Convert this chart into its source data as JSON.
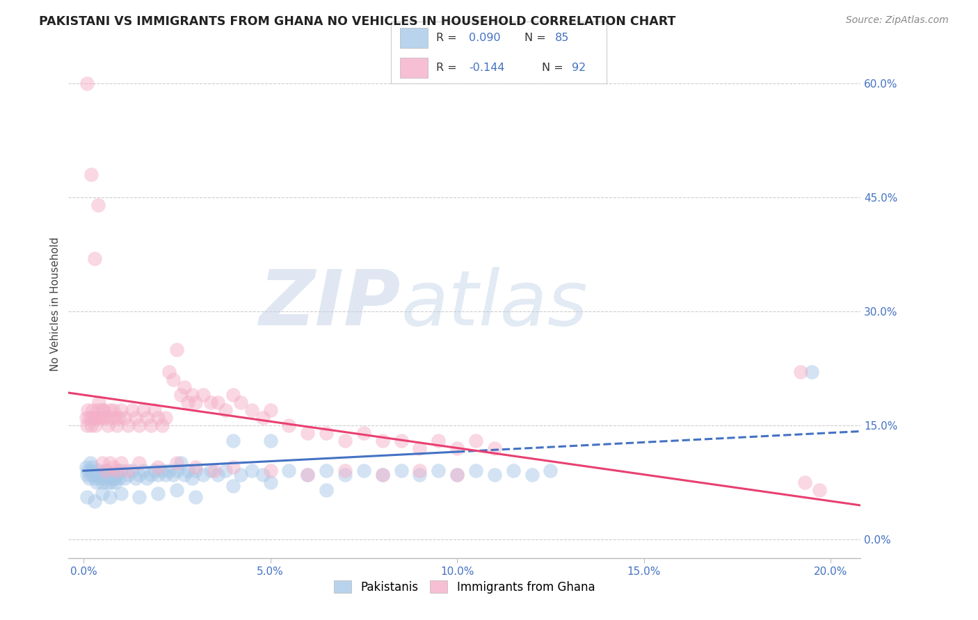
{
  "title": "PAKISTANI VS IMMIGRANTS FROM GHANA NO VEHICLES IN HOUSEHOLD CORRELATION CHART",
  "source": "Source: ZipAtlas.com",
  "ylabel": "No Vehicles in Household",
  "yticks_right": [
    0.0,
    0.15,
    0.3,
    0.45,
    0.6
  ],
  "ytick_labels_right": [
    "0.0%",
    "15.0%",
    "30.0%",
    "45.0%",
    "60.0%"
  ],
  "xticks": [
    0.0,
    0.05,
    0.1,
    0.15,
    0.2
  ],
  "xtick_labels": [
    "0.0%",
    "5.0%",
    "10.0%",
    "15.0%",
    "20.0%"
  ],
  "xlim": [
    -0.004,
    0.208
  ],
  "ylim": [
    -0.025,
    0.645
  ],
  "blue_face_color": "#a8c8e8",
  "pink_face_color": "#f4b0c8",
  "blue_line_color": "#4472c4",
  "pink_line_color": "#e84070",
  "axis_tick_color": "#4472c4",
  "watermark_text": "ZIPatlas",
  "legend_label_blue": "Pakistanis",
  "legend_label_pink": "Immigrants from Ghana",
  "blue_R": "0.090",
  "blue_N": "85",
  "pink_R": "-0.144",
  "pink_N": "92",
  "pakistanis_x": [
    0.0008,
    0.001,
    0.0012,
    0.0015,
    0.0018,
    0.002,
    0.0022,
    0.0025,
    0.003,
    0.0032,
    0.0035,
    0.004,
    0.0042,
    0.0045,
    0.005,
    0.0052,
    0.0055,
    0.006,
    0.0065,
    0.007,
    0.0072,
    0.0075,
    0.008,
    0.0082,
    0.0085,
    0.009,
    0.0095,
    0.01,
    0.011,
    0.012,
    0.013,
    0.014,
    0.015,
    0.016,
    0.017,
    0.018,
    0.019,
    0.02,
    0.021,
    0.022,
    0.023,
    0.024,
    0.025,
    0.026,
    0.027,
    0.028,
    0.029,
    0.03,
    0.032,
    0.034,
    0.036,
    0.038,
    0.04,
    0.042,
    0.045,
    0.048,
    0.05,
    0.055,
    0.06,
    0.065,
    0.07,
    0.075,
    0.08,
    0.085,
    0.09,
    0.095,
    0.1,
    0.105,
    0.11,
    0.115,
    0.12,
    0.125,
    0.001,
    0.003,
    0.005,
    0.007,
    0.01,
    0.015,
    0.02,
    0.025,
    0.03,
    0.04,
    0.05,
    0.065,
    0.195
  ],
  "pakistanis_y": [
    0.095,
    0.085,
    0.09,
    0.08,
    0.1,
    0.085,
    0.09,
    0.095,
    0.08,
    0.085,
    0.075,
    0.09,
    0.085,
    0.08,
    0.075,
    0.085,
    0.08,
    0.09,
    0.075,
    0.085,
    0.08,
    0.075,
    0.085,
    0.08,
    0.075,
    0.085,
    0.08,
    0.09,
    0.08,
    0.085,
    0.09,
    0.08,
    0.085,
    0.09,
    0.08,
    0.085,
    0.09,
    0.085,
    0.09,
    0.085,
    0.09,
    0.085,
    0.09,
    0.1,
    0.085,
    0.09,
    0.08,
    0.09,
    0.085,
    0.09,
    0.085,
    0.09,
    0.13,
    0.085,
    0.09,
    0.085,
    0.13,
    0.09,
    0.085,
    0.09,
    0.085,
    0.09,
    0.085,
    0.09,
    0.085,
    0.09,
    0.085,
    0.09,
    0.085,
    0.09,
    0.085,
    0.09,
    0.055,
    0.05,
    0.06,
    0.055,
    0.06,
    0.055,
    0.06,
    0.065,
    0.055,
    0.07,
    0.075,
    0.065,
    0.22
  ],
  "ghana_x": [
    0.0008,
    0.001,
    0.0012,
    0.0015,
    0.002,
    0.0022,
    0.0025,
    0.003,
    0.0032,
    0.0035,
    0.004,
    0.0042,
    0.0045,
    0.005,
    0.0052,
    0.0055,
    0.006,
    0.0065,
    0.007,
    0.0075,
    0.008,
    0.0085,
    0.009,
    0.0095,
    0.01,
    0.011,
    0.012,
    0.013,
    0.014,
    0.015,
    0.016,
    0.017,
    0.018,
    0.019,
    0.02,
    0.021,
    0.022,
    0.023,
    0.024,
    0.025,
    0.026,
    0.027,
    0.028,
    0.029,
    0.03,
    0.032,
    0.034,
    0.036,
    0.038,
    0.04,
    0.042,
    0.045,
    0.048,
    0.05,
    0.055,
    0.06,
    0.065,
    0.07,
    0.075,
    0.08,
    0.085,
    0.09,
    0.095,
    0.1,
    0.105,
    0.11,
    0.001,
    0.002,
    0.003,
    0.004,
    0.005,
    0.006,
    0.007,
    0.008,
    0.009,
    0.01,
    0.012,
    0.015,
    0.02,
    0.025,
    0.03,
    0.035,
    0.04,
    0.05,
    0.06,
    0.07,
    0.08,
    0.09,
    0.1,
    0.192,
    0.193,
    0.197
  ],
  "ghana_y": [
    0.16,
    0.15,
    0.17,
    0.16,
    0.15,
    0.16,
    0.17,
    0.16,
    0.15,
    0.16,
    0.17,
    0.18,
    0.16,
    0.17,
    0.16,
    0.17,
    0.16,
    0.15,
    0.17,
    0.16,
    0.17,
    0.16,
    0.15,
    0.16,
    0.17,
    0.16,
    0.15,
    0.17,
    0.16,
    0.15,
    0.17,
    0.16,
    0.15,
    0.17,
    0.16,
    0.15,
    0.16,
    0.22,
    0.21,
    0.25,
    0.19,
    0.2,
    0.18,
    0.19,
    0.18,
    0.19,
    0.18,
    0.18,
    0.17,
    0.19,
    0.18,
    0.17,
    0.16,
    0.17,
    0.15,
    0.14,
    0.14,
    0.13,
    0.14,
    0.13,
    0.13,
    0.12,
    0.13,
    0.12,
    0.13,
    0.12,
    0.6,
    0.48,
    0.37,
    0.44,
    0.1,
    0.09,
    0.1,
    0.095,
    0.09,
    0.1,
    0.09,
    0.1,
    0.095,
    0.1,
    0.095,
    0.09,
    0.095,
    0.09,
    0.085,
    0.09,
    0.085,
    0.09,
    0.085,
    0.22,
    0.075,
    0.065
  ]
}
